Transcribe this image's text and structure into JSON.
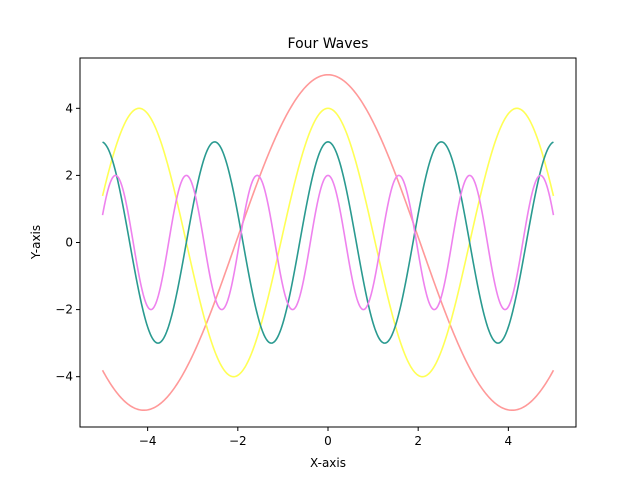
{
  "chart_data": {
    "type": "line",
    "title": "Four Waves",
    "xlabel": "X-axis",
    "ylabel": "Y-axis",
    "xlim": [
      -5.5,
      5.5
    ],
    "ylim": [
      -5.5,
      5.5
    ],
    "xticks": [
      -4,
      -2,
      0,
      2,
      4
    ],
    "yticks": [
      -4,
      -2,
      0,
      2,
      4
    ],
    "xtick_labels": [
      "−4",
      "−2",
      "0",
      "2",
      "4"
    ],
    "ytick_labels": [
      "−4",
      "−2",
      "0",
      "2",
      "4"
    ],
    "grid": false,
    "legend": "none",
    "series": [
      {
        "color": "#ff9999",
        "function": "5*cos(x/1.3)",
        "x_range": [
          -5,
          5
        ]
      },
      {
        "color": "#ffff55",
        "function": "4*cos(1.5*x)",
        "x_range": [
          -5,
          5
        ]
      },
      {
        "color": "#2a9a90",
        "function": "3*cos(2.5*x)",
        "x_range": [
          -5,
          5
        ]
      },
      {
        "color": "#ee82ee",
        "function": "2*cos(4*x)",
        "x_range": [
          -5,
          5
        ]
      }
    ]
  }
}
